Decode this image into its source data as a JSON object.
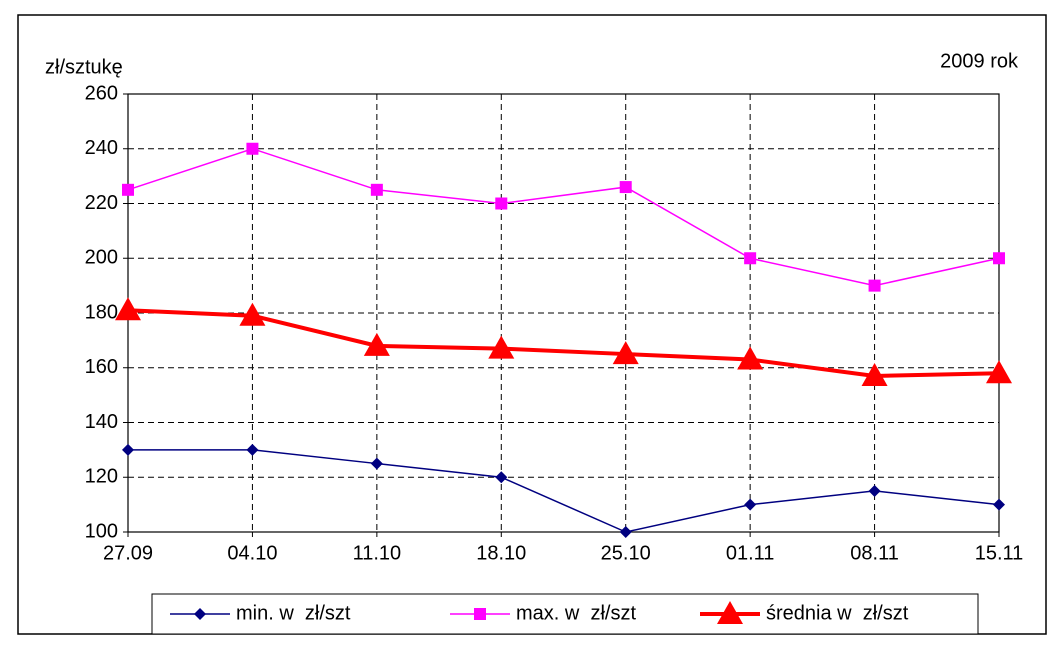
{
  "chart_data": {
    "type": "line",
    "y_axis_label": "zł/sztukę",
    "annotation": "2009 rok",
    "categories": [
      "27.09",
      "04.10",
      "11.10",
      "18.10",
      "25.10",
      "01.11",
      "08.11",
      "15.11"
    ],
    "series": [
      {
        "name": "min. w  zł/szt",
        "color": "#000080",
        "marker": "diamond",
        "values": [
          130,
          130,
          125,
          120,
          100,
          110,
          115,
          110
        ]
      },
      {
        "name": "max. w  zł/szt",
        "color": "#ff00ff",
        "marker": "square",
        "values": [
          225,
          240,
          225,
          220,
          226,
          200,
          190,
          200
        ]
      },
      {
        "name": "średnia w  zł/szt",
        "color": "#ff0000",
        "marker": "triangle",
        "values": [
          181,
          179,
          168,
          167,
          165,
          163,
          157,
          158
        ]
      }
    ],
    "ylim": [
      100,
      260
    ],
    "yticks": [
      100,
      120,
      140,
      160,
      180,
      200,
      220,
      240,
      260
    ],
    "grid": true,
    "legend": "bottom"
  }
}
